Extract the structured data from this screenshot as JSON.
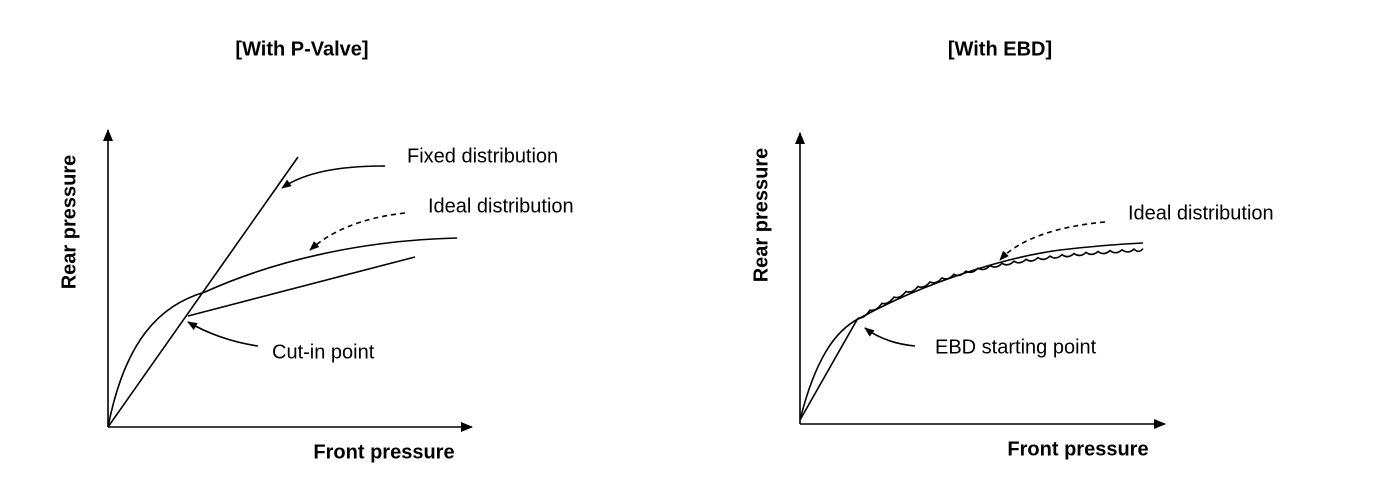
{
  "panels": [
    {
      "title": "[With P-Valve]",
      "y_axis_label": "Rear pressure",
      "x_axis_label": "Front pressure",
      "annotations": [
        "Fixed distribution",
        "Ideal distribution",
        "Cut-in point"
      ]
    },
    {
      "title": "[With EBD]",
      "y_axis_label": "Rear pressure",
      "x_axis_label": "Front pressure",
      "annotations": [
        "Ideal distribution",
        "EBD starting point"
      ]
    }
  ]
}
